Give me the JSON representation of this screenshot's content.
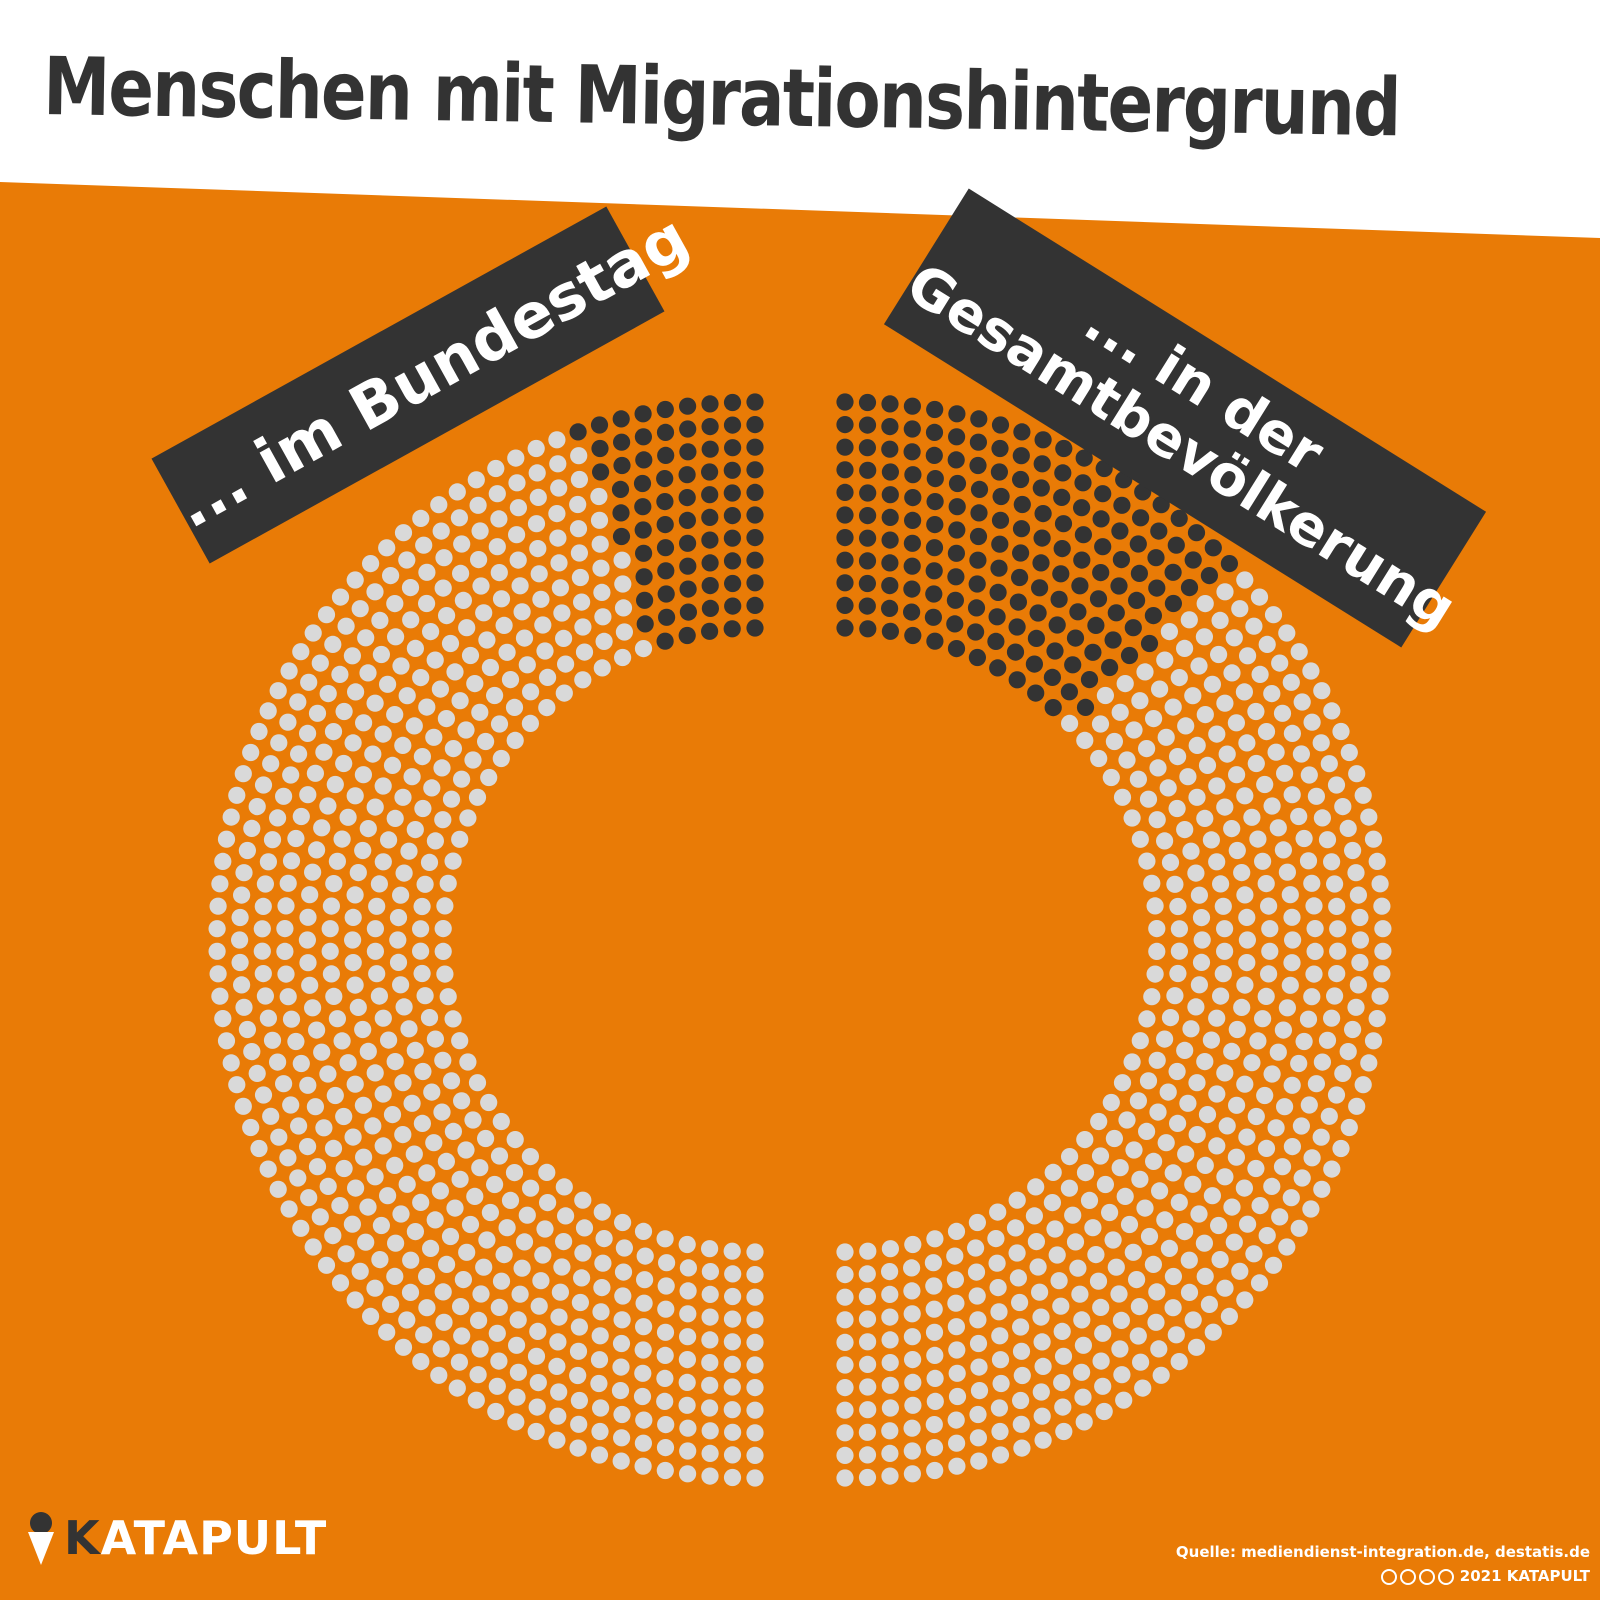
{
  "title": "Menschen mit Migrationshintergrund",
  "labels": {
    "left": "... im Bundestag",
    "right_line1": "... in der",
    "right_line2": "Gesamtbevölkerung"
  },
  "footer": {
    "brand_initial": "K",
    "brand_rest": "ATAPULT",
    "source": "Quelle: mediendienst-integration.de, destatis.de",
    "copyright": "2021 KATAPULT",
    "license_icons": [
      "cc-icon",
      "by-icon",
      "nc-icon",
      "nd-icon"
    ]
  },
  "colors": {
    "background": "#e97b06",
    "migration_dot": "#333333",
    "other_dot": "#d9d9d9",
    "label_box": "#333333",
    "title_bar": "#ffffff"
  },
  "chart_data": {
    "type": "unit-chart",
    "unit": "dots arranged in half-ring arcs; dark dots = Menschen mit Migrationshintergrund",
    "series": [
      {
        "name": "... im Bundestag",
        "share_percent": 11.3
      },
      {
        "name": "... in der Gesamtbevölkerung",
        "share_percent": 26
      }
    ]
  }
}
